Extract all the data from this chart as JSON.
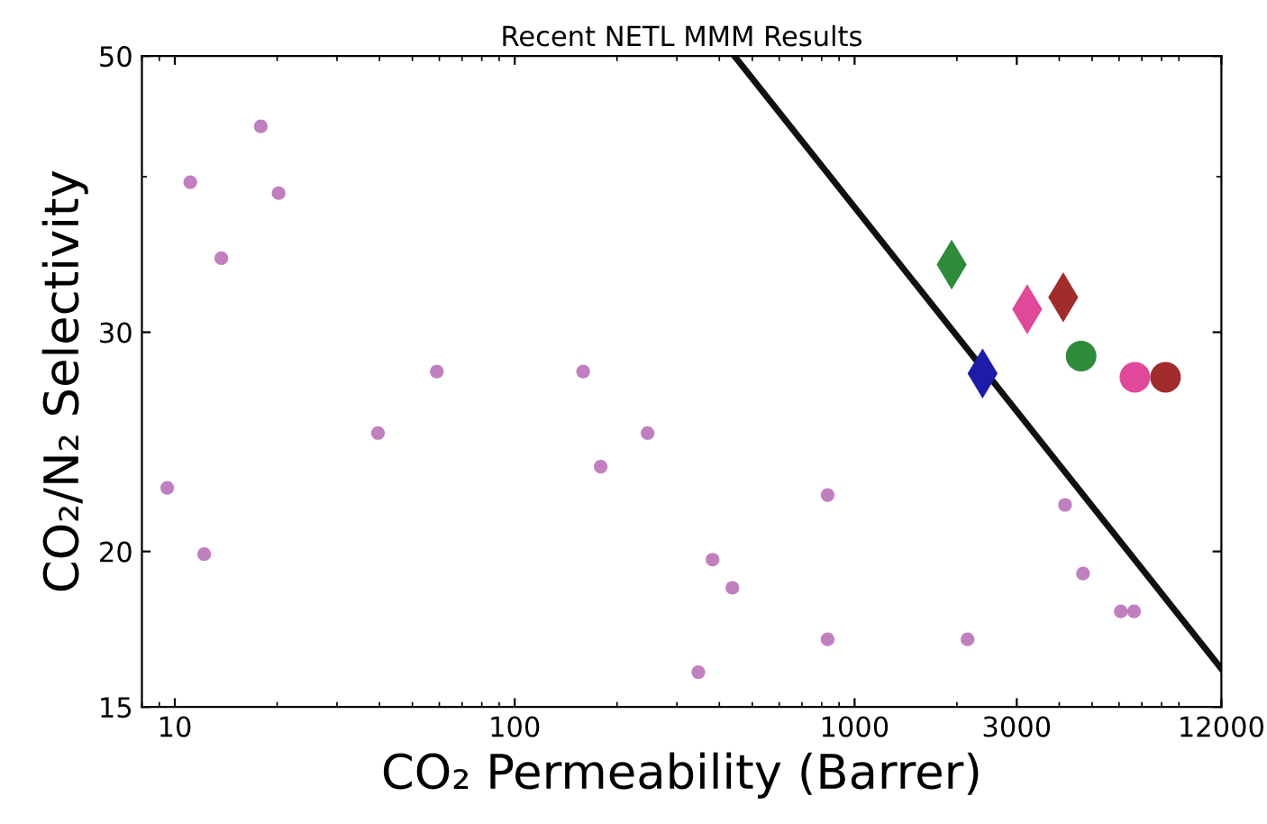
{
  "chart_data": {
    "type": "scatter",
    "title": "Recent NETL MMM Results",
    "xlabel": "CO₂ Permeability (Barrer)",
    "ylabel": "CO₂/N₂ Selectivity",
    "log": "xy",
    "grid": false,
    "xlim": [
      8,
      12000
    ],
    "ylim": [
      15,
      50
    ],
    "xticks": [
      10,
      100,
      1000,
      3000,
      12000
    ],
    "yticks": [
      15,
      20,
      30,
      50
    ],
    "series": [
      {
        "marker": "circle",
        "color": "#c080c0",
        "x": [
          9.5,
          12.2,
          11.1,
          13.7,
          17.9,
          20.2,
          39.6,
          59,
          159,
          179,
          246,
          347,
          382,
          437,
          833,
          833,
          2150,
          4160,
          4700,
          6070,
          6640
        ],
        "values": [
          22.5,
          19.9,
          39.6,
          34.4,
          43.9,
          38.8,
          24.9,
          27.9,
          27.9,
          23.4,
          24.9,
          16.0,
          19.7,
          18.7,
          22.2,
          17.0,
          17.0,
          21.8,
          19.2,
          17.9,
          17.9
        ]
      },
      {
        "type": "line",
        "marker": "none",
        "color": "#111111",
        "x": [
          443,
          12000
        ],
        "values": [
          50,
          16.1
        ]
      },
      {
        "type": "scatter",
        "marker": "diamond",
        "color": "#2e8b3a",
        "x": [
          1930
        ],
        "values": [
          34.0
        ]
      },
      {
        "type": "scatter",
        "marker": "diamond",
        "color": "#e0489a",
        "x": [
          3220
        ],
        "values": [
          31.3
        ]
      },
      {
        "type": "scatter",
        "marker": "diamond",
        "color": "#a02c2c",
        "x": [
          4110
        ],
        "values": [
          32.0
        ]
      },
      {
        "type": "scatter",
        "marker": "diamond",
        "color": "#1c1ca8",
        "x": [
          2380
        ],
        "values": [
          27.8
        ]
      },
      {
        "type": "scatter",
        "marker": "circle",
        "color": "#2e8b3a",
        "x": [
          4640
        ],
        "values": [
          28.7
        ]
      },
      {
        "type": "scatter",
        "marker": "circle",
        "color": "#e0489a",
        "x": [
          6680
        ],
        "values": [
          27.6
        ]
      },
      {
        "type": "scatter",
        "marker": "circle",
        "color": "#a02c2c",
        "x": [
          8220
        ],
        "values": [
          27.6
        ]
      }
    ]
  }
}
